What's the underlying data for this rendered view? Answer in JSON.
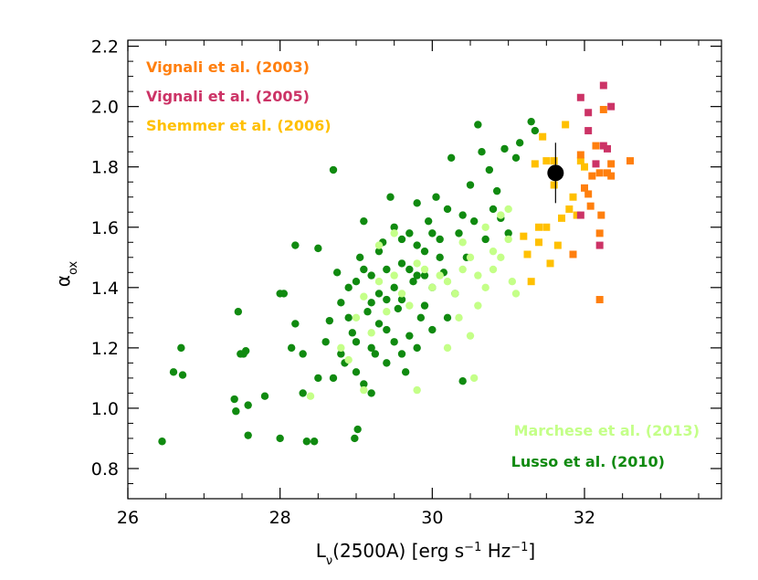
{
  "chart_data": {
    "type": "scatter",
    "xlabel_main": "L",
    "xlabel_sub": "ν",
    "xlabel_rest": "(2500A) [erg s",
    "xlabel_exp1": "−1",
    "xlabel_mid": " Hz",
    "xlabel_exp2": "−1",
    "xlabel_end": "]",
    "ylabel_main": "α",
    "ylabel_sub": "ox",
    "xlim": [
      26,
      33.8
    ],
    "ylim": [
      0.7,
      2.22
    ],
    "x_ticks": [
      26,
      28,
      30,
      32
    ],
    "x_tick_labels": [
      "26",
      "28",
      "30",
      "32"
    ],
    "y_ticks": [
      0.8,
      1.0,
      1.2,
      1.4,
      1.6,
      1.8,
      2.0,
      2.2
    ],
    "y_tick_labels": [
      "0.8",
      "1.0",
      "1.2",
      "1.4",
      "1.6",
      "1.8",
      "2.0",
      "2.2"
    ],
    "legend_top_left": [
      {
        "name": "Vignali et al. (2003)",
        "color": "#ff7f0e"
      },
      {
        "name": "Vignali et al. (2005)",
        "color": "#cc3366"
      },
      {
        "name": "Shemmer et al. (2006)",
        "color": "#ffc000"
      }
    ],
    "legend_bottom_right": [
      {
        "name": "Marchese et al. (2013)",
        "color": "#c4ff88"
      },
      {
        "name": "Lusso et al. (2010)",
        "color": "#108a10"
      }
    ],
    "series": [
      {
        "name": "Lusso et al. (2010)",
        "marker": "circle",
        "color": "#108a10",
        "points": [
          [
            26.45,
            0.89
          ],
          [
            26.6,
            1.12
          ],
          [
            26.7,
            1.2
          ],
          [
            26.72,
            1.11
          ],
          [
            27.4,
            1.03
          ],
          [
            27.42,
            0.99
          ],
          [
            27.45,
            1.32
          ],
          [
            27.48,
            1.18
          ],
          [
            27.52,
            1.18
          ],
          [
            27.55,
            1.19
          ],
          [
            27.58,
            1.01
          ],
          [
            27.58,
            0.91
          ],
          [
            27.8,
            1.04
          ],
          [
            28.0,
            1.38
          ],
          [
            28.05,
            1.38
          ],
          [
            28.0,
            0.9
          ],
          [
            28.15,
            1.2
          ],
          [
            28.2,
            1.28
          ],
          [
            28.2,
            1.54
          ],
          [
            28.3,
            1.18
          ],
          [
            28.3,
            1.05
          ],
          [
            28.35,
            0.89
          ],
          [
            28.45,
            0.89
          ],
          [
            28.5,
            1.1
          ],
          [
            28.5,
            1.53
          ],
          [
            28.6,
            1.22
          ],
          [
            28.65,
            1.29
          ],
          [
            28.7,
            1.79
          ],
          [
            28.75,
            1.45
          ],
          [
            28.8,
            1.35
          ],
          [
            28.85,
            1.15
          ],
          [
            28.9,
            1.4
          ],
          [
            28.95,
            1.25
          ],
          [
            28.98,
            0.9
          ],
          [
            29.02,
            0.93
          ],
          [
            29.05,
            1.5
          ],
          [
            29.1,
            1.62
          ],
          [
            29.15,
            1.32
          ],
          [
            29.2,
            1.44
          ],
          [
            29.25,
            1.18
          ],
          [
            29.3,
            1.38
          ],
          [
            29.35,
            1.55
          ],
          [
            29.4,
            1.26
          ],
          [
            29.45,
            1.7
          ],
          [
            29.5,
            1.6
          ],
          [
            29.55,
            1.33
          ],
          [
            29.6,
            1.48
          ],
          [
            29.65,
            1.12
          ],
          [
            29.7,
            1.58
          ],
          [
            29.75,
            1.42
          ],
          [
            29.8,
            1.68
          ],
          [
            29.85,
            1.3
          ],
          [
            29.9,
            1.52
          ],
          [
            29.95,
            1.62
          ],
          [
            30.0,
            1.4
          ],
          [
            30.05,
            1.7
          ],
          [
            30.1,
            1.56
          ],
          [
            30.15,
            1.45
          ],
          [
            30.2,
            1.66
          ],
          [
            30.25,
            1.83
          ],
          [
            30.3,
            1.38
          ],
          [
            30.35,
            1.58
          ],
          [
            30.4,
            1.64
          ],
          [
            30.45,
            1.5
          ],
          [
            30.5,
            1.74
          ],
          [
            30.55,
            1.62
          ],
          [
            30.6,
            1.94
          ],
          [
            30.65,
            1.85
          ],
          [
            30.7,
            1.56
          ],
          [
            30.75,
            1.79
          ],
          [
            30.8,
            1.66
          ],
          [
            30.85,
            1.72
          ],
          [
            30.9,
            1.63
          ],
          [
            30.95,
            1.86
          ],
          [
            31.0,
            1.58
          ],
          [
            31.1,
            1.83
          ],
          [
            31.15,
            1.88
          ],
          [
            31.3,
            1.95
          ],
          [
            31.35,
            1.92
          ],
          [
            30.4,
            1.09
          ],
          [
            29.0,
            1.22
          ],
          [
            29.1,
            1.08
          ],
          [
            29.2,
            1.35
          ],
          [
            29.3,
            1.28
          ],
          [
            29.4,
            1.46
          ],
          [
            29.5,
            1.22
          ],
          [
            29.6,
            1.36
          ],
          [
            29.7,
            1.24
          ],
          [
            29.8,
            1.44
          ],
          [
            29.9,
            1.34
          ],
          [
            30.0,
            1.26
          ],
          [
            30.1,
            1.5
          ],
          [
            28.9,
            1.3
          ],
          [
            29.0,
            1.42
          ],
          [
            29.1,
            1.46
          ],
          [
            29.2,
            1.2
          ],
          [
            29.3,
            1.52
          ],
          [
            29.4,
            1.36
          ],
          [
            29.5,
            1.4
          ],
          [
            29.6,
            1.56
          ],
          [
            29.7,
            1.46
          ],
          [
            29.8,
            1.54
          ],
          [
            29.9,
            1.44
          ],
          [
            30.0,
            1.58
          ],
          [
            28.7,
            1.1
          ],
          [
            28.8,
            1.18
          ],
          [
            29.0,
            1.12
          ],
          [
            29.2,
            1.05
          ],
          [
            29.4,
            1.15
          ],
          [
            29.6,
            1.18
          ],
          [
            29.8,
            1.2
          ],
          [
            30.2,
            1.3
          ]
        ]
      },
      {
        "name": "Marchese et al. (2013)",
        "marker": "circle",
        "color": "#c4ff88",
        "points": [
          [
            28.4,
            1.04
          ],
          [
            28.9,
            1.16
          ],
          [
            29.0,
            1.3
          ],
          [
            29.1,
            1.37
          ],
          [
            29.2,
            1.25
          ],
          [
            29.3,
            1.42
          ],
          [
            29.4,
            1.32
          ],
          [
            29.5,
            1.44
          ],
          [
            29.6,
            1.38
          ],
          [
            29.7,
            1.34
          ],
          [
            29.8,
            1.48
          ],
          [
            29.9,
            1.46
          ],
          [
            30.0,
            1.4
          ],
          [
            30.1,
            1.44
          ],
          [
            30.2,
            1.42
          ],
          [
            30.3,
            1.38
          ],
          [
            30.4,
            1.46
          ],
          [
            30.5,
            1.5
          ],
          [
            30.6,
            1.44
          ],
          [
            30.7,
            1.4
          ],
          [
            30.8,
            1.46
          ],
          [
            30.9,
            1.5
          ],
          [
            31.0,
            1.56
          ],
          [
            31.05,
            1.42
          ],
          [
            30.2,
            1.2
          ],
          [
            30.35,
            1.3
          ],
          [
            30.5,
            1.24
          ],
          [
            30.55,
            1.1
          ],
          [
            29.8,
            1.06
          ],
          [
            29.1,
            1.06
          ],
          [
            28.8,
            1.2
          ],
          [
            30.9,
            1.64
          ],
          [
            31.0,
            1.66
          ],
          [
            30.7,
            1.6
          ],
          [
            30.4,
            1.55
          ],
          [
            29.3,
            1.54
          ],
          [
            29.5,
            1.58
          ],
          [
            30.6,
            1.34
          ],
          [
            30.8,
            1.52
          ],
          [
            31.1,
            1.38
          ]
        ]
      },
      {
        "name": "Shemmer et al. (2006)",
        "marker": "square",
        "color": "#ffc000",
        "points": [
          [
            31.2,
            1.57
          ],
          [
            31.25,
            1.51
          ],
          [
            31.3,
            1.42
          ],
          [
            31.35,
            1.81
          ],
          [
            31.4,
            1.6
          ],
          [
            31.45,
            1.9
          ],
          [
            31.5,
            1.82
          ],
          [
            31.55,
            1.48
          ],
          [
            31.6,
            1.74
          ],
          [
            31.65,
            1.54
          ],
          [
            31.7,
            1.63
          ],
          [
            31.75,
            1.94
          ],
          [
            31.8,
            1.66
          ],
          [
            31.85,
            1.7
          ],
          [
            31.95,
            1.82
          ],
          [
            32.0,
            1.8
          ],
          [
            31.9,
            1.64
          ],
          [
            31.4,
            1.55
          ],
          [
            31.6,
            1.82
          ],
          [
            31.5,
            1.6
          ]
        ]
      },
      {
        "name": "Vignali et al. (2003)",
        "marker": "square",
        "color": "#ff7f0e",
        "points": [
          [
            31.95,
            1.84
          ],
          [
            32.0,
            1.73
          ],
          [
            32.05,
            1.71
          ],
          [
            32.08,
            1.67
          ],
          [
            32.1,
            1.77
          ],
          [
            32.15,
            1.87
          ],
          [
            32.2,
            1.58
          ],
          [
            32.2,
            1.78
          ],
          [
            32.22,
            1.64
          ],
          [
            32.25,
            1.99
          ],
          [
            32.3,
            1.78
          ],
          [
            32.35,
            1.81
          ],
          [
            32.35,
            1.77
          ],
          [
            32.6,
            1.82
          ],
          [
            32.2,
            1.36
          ],
          [
            31.85,
            1.51
          ]
        ]
      },
      {
        "name": "Vignali et al. (2005)",
        "marker": "square",
        "color": "#cc3366",
        "points": [
          [
            31.95,
            2.03
          ],
          [
            32.05,
            1.98
          ],
          [
            32.15,
            1.81
          ],
          [
            32.2,
            1.54
          ],
          [
            32.25,
            2.07
          ],
          [
            32.25,
            1.87
          ],
          [
            32.3,
            1.86
          ],
          [
            32.35,
            2.0
          ],
          [
            31.95,
            1.64
          ],
          [
            32.05,
            1.92
          ]
        ]
      }
    ],
    "highlight": {
      "x": 31.62,
      "y": 1.78,
      "yerr": 0.1,
      "color": "#000000"
    }
  }
}
